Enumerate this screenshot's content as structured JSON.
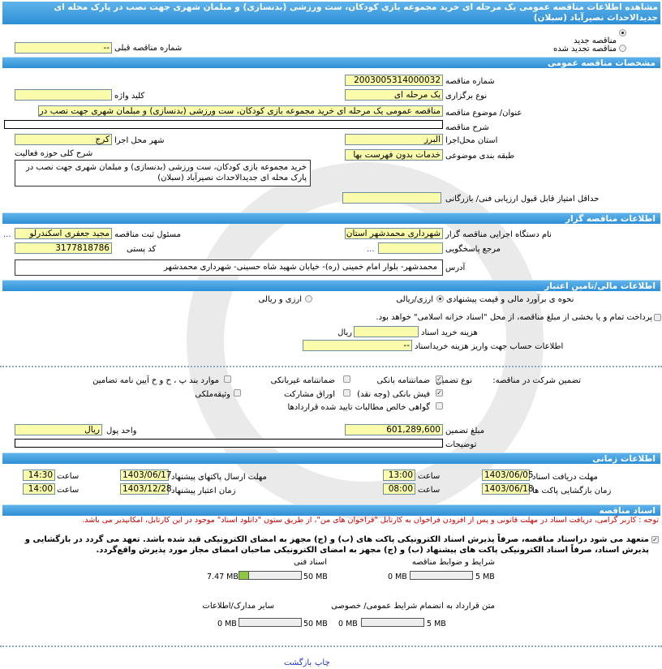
{
  "header": {
    "title": "مشاهده اطلاعات مناقصه عمومی یک مرحله ای خرید مجموعه بازی کودکان، ست ورزشی (بدنسازی) و مبلمان شهری جهت نصب در پارک محله ای جدیدالاحداث نصیرآباد (سبلان)"
  },
  "tender_type": {
    "new_label": "مناقصه جدید",
    "renewed_label": "مناقصه تجدید شده",
    "selected": "new",
    "prev_number_label": "شماره مناقصه قبلی",
    "prev_number": "--"
  },
  "general": {
    "section": "مشخصات مناقصه عمومی",
    "number_label": "شماره مناقصه",
    "number": "2003005314000032",
    "holding_type_label": "نوع برگزاری",
    "holding_type": "یک مرحله ای",
    "keyword_label": "کلید واژه",
    "keyword": "",
    "subject_label": "عنوان/ موضوع مناقصه",
    "subject": "مناقصه عمومی یک مرحله ای خرید مجموعه بازی کودکان، ست ورزشی (بدنسازی) و مبلمان شهری جهت نصب در",
    "description_label": "شرح مناقصه",
    "description": "",
    "province_label": "استان محل‌اجرا",
    "province": "البرز",
    "city_label": "شهر محل اجرا",
    "city": "کرج",
    "category_label": "طبقه بندی موضوعی",
    "category": "خدمات بدون فهرست بها",
    "scope_label": "شرح کلی حوزه فعالیت",
    "scope": "خرید مجموعه بازی کودکان، ست ورزشی (بدنسازی) و مبلمان شهری جهت نصب در پارک محله ای جدیدالاحداث نصیرآباد (سبلان)",
    "min_score_label": "حداقل امتیاز قابل قبول ارزیابی فنی/ بازرگانی",
    "min_score": ""
  },
  "organizer": {
    "section": "اطلاعات مناقصه گزار",
    "org_label": "نام دستگاه اجرایی مناقصه گزار",
    "org": "شهرداری محمدشهر استان",
    "registrar_label": "مسئول ثبت مناقصه",
    "registrar": "مجید جعفری اسکندرلو",
    "reference_label": "مرجع پاسخگویی",
    "reference": "",
    "postal_label": "کد پستی",
    "postal": "3177818786",
    "address_label": "آدرس",
    "address": "محمدشهر- بلوار امام خمینی (ره)- خیابان شهید شاه حسینی- شهرداری محمدشهر",
    "more": "..."
  },
  "finance": {
    "section": "اطلاعات مالی/تامین اعتبار",
    "estimate_label": "نحوه ی برآورد مالی و قیمت پیشنهادی",
    "opt_rial": "ارزی/ریالی",
    "opt_both": "ارزی و ریالی",
    "selected": "rial",
    "treasury_label": "پرداخت تمام و یا بخشی از مبلغ مناقصه، از محل \"اسناد خزانه اسلامی\" خواهد بود.",
    "treasury_checked": false,
    "doc_cost_label": "هزینه خرید اسناد",
    "doc_cost": "",
    "doc_cost_unit": "ریال",
    "account_label": "اطلاعات حساب جهت واریز هزینه خریداسناد",
    "account": "--"
  },
  "guarantee": {
    "label": "تضمین شرکت در مناقصه:",
    "type_label": "نوع تضمین",
    "options": [
      {
        "label": "ضمانتنامه بانکی",
        "checked": true
      },
      {
        "label": "ضمانتنامه غیربانکی",
        "checked": false
      },
      {
        "label": "موارد بند پ ، ح و خ آیین نامه تضامین",
        "checked": false
      },
      {
        "label": "فیش بانکی (وجه نقد)",
        "checked": true
      },
      {
        "label": "اوراق مشارکت",
        "checked": false
      },
      {
        "label": "وثیقه‌ملکی",
        "checked": false
      },
      {
        "label": "گواهی خالص مطالبات تایید شده قراردادها",
        "checked": false
      }
    ],
    "amount_label": "مبلغ تضمین",
    "amount": "601,289,600",
    "currency_label": "واحد پول",
    "currency": "ریال",
    "notes_label": "توضیحات",
    "notes": ""
  },
  "timing": {
    "section": "اطلاعات زمانی",
    "receive_label": "مهلت دریافت اسناد",
    "receive_date": "1403/06/05",
    "receive_time": "13:00",
    "submit_label": "مهلت ارسال پاکتهای پیشنهاد",
    "submit_date": "1403/06/17",
    "submit_time": "14:30",
    "open_label": "زمان بازگشایی پاکت ها",
    "open_date": "1403/06/18",
    "open_time": "08:00",
    "validity_label": "زمان اعتبار پیشنهاد",
    "validity_date": "1403/12/28",
    "validity_time": "14:00",
    "time_label": "ساعت"
  },
  "documents": {
    "section": "اسناد مناقصه",
    "notice": "توجه : کاربر گرامی، دریافت اسناد در مهلت قانونی و پس از افزودن فراخوان به کارتابل \"فراخوان های من\"، از طریق ستون \"دانلود اسناد\" موجود در این کارتابل، امکانپذیر می باشد.",
    "commitment": "متعهد می شود دراسناد مناقصه، صرفاً پذیرش اسناد الکترونیکی پاکت های (ب) و (ج) مجهز به امضای الکترونیکی قید شده باشد. تعهد می گردد در بازگشایی و پذیرش اسناد، صرفاً اسناد الکترونیکی پاکت های پیشنهاد (ب) و (ج) مجهز به امضای الکترونیکی صاحبان امضای مجاز مورد پذیرش واقع‌گردد.",
    "files": [
      {
        "label": "شرایط و ضوابط مناقصه",
        "used": "0 MB",
        "max": "5 MB",
        "fraction": 0
      },
      {
        "label": "اسناد فنی",
        "used": "7.47 MB",
        "max": "50 MB",
        "fraction": 0.149
      },
      {
        "label": "متن قرارداد به انضمام شرایط عمومی/ خصوصی",
        "used": "0 MB",
        "max": "5 MB",
        "fraction": 0
      },
      {
        "label": "سایر مدارک/اطلاعات",
        "used": "0 MB",
        "max": "50 MB",
        "fraction": 0
      }
    ]
  },
  "footer": {
    "print": "چاپ",
    "back": "بازگشت"
  },
  "colors": {
    "section_bar": "#2e8fd6",
    "field_bg": "#fbfbac",
    "notice": "#cc0000",
    "progress": "#8dc63f"
  }
}
